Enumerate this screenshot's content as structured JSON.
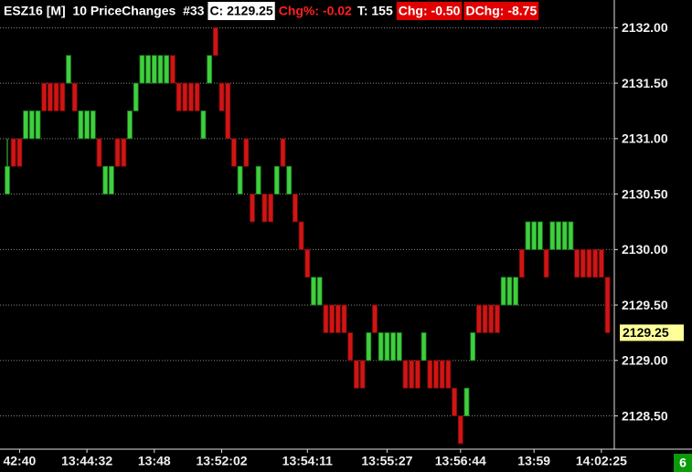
{
  "chart_data": {
    "type": "candlestick",
    "header": [
      "ESZ16 [M]  10 PriceChanges  #33",
      "C: 2129.25",
      "Chg%: -0.02",
      "T: 155",
      "Chg: -0.50",
      "DChg: -8.75"
    ],
    "categories": [
      null,
      null,
      "42:40",
      null,
      null,
      null,
      null,
      null,
      null,
      null,
      null,
      null,
      null,
      "13:44:32",
      null,
      null,
      null,
      null,
      null,
      null,
      null,
      null,
      null,
      null,
      "13:48",
      null,
      null,
      null,
      null,
      null,
      null,
      null,
      null,
      null,
      null,
      "13:52:02",
      null,
      null,
      null,
      null,
      null,
      null,
      null,
      null,
      null,
      null,
      null,
      null,
      null,
      "13:54:11",
      null,
      null,
      null,
      null,
      null,
      null,
      null,
      null,
      null,
      null,
      null,
      null,
      "13:55:27",
      null,
      null,
      null,
      null,
      null,
      null,
      null,
      null,
      null,
      null,
      null,
      "13:56:44",
      null,
      null,
      null,
      null,
      null,
      null,
      null,
      null,
      null,
      null,
      null,
      "13:59",
      null,
      null,
      null,
      null,
      null,
      null,
      null,
      null,
      null,
      null,
      "14:02:25",
      null
    ],
    "open": [
      2130.5,
      2131,
      2131,
      2131,
      2131,
      2131,
      2131.5,
      2131.5,
      2131.5,
      2131.5,
      2131.5,
      2131.5,
      2131,
      2131,
      2131,
      2131,
      2130.5,
      2130.5,
      2131,
      2131,
      2131,
      2131.25,
      2131.5,
      2131.5,
      2131.5,
      2131.5,
      2131.5,
      2131.75,
      2131.5,
      2131.5,
      2131.5,
      2131.5,
      2131,
      2131.5,
      2132,
      2131.5,
      2131.5,
      2131,
      2130.5,
      2131,
      2130.5,
      2130.5,
      2130.5,
      2130.5,
      2130.5,
      2131,
      2130.5,
      2130.5,
      2130.25,
      2130,
      2129.5,
      2129.5,
      2129.5,
      2129.5,
      2129.5,
      2129.5,
      2129.25,
      2129,
      2129,
      2129,
      2129.5,
      2129,
      2129,
      2129,
      2129,
      2129,
      2129,
      2129,
      2129,
      2129,
      2129,
      2129,
      2129,
      2128.75,
      2128.5,
      2128.5,
      2129,
      2129.5,
      2129.5,
      2129.5,
      2129.5,
      2129.5,
      2129.5,
      2129.5,
      2130,
      2130,
      2130,
      2130,
      2130,
      2130,
      2130,
      2130,
      2130,
      2130,
      2130,
      2130,
      2130,
      2130,
      2129.75
    ],
    "high": [
      2131,
      2131,
      2131,
      2131.25,
      2131.25,
      2131.25,
      2131.5,
      2131.5,
      2131.5,
      2131.5,
      2131.75,
      2131.5,
      2131.25,
      2131.25,
      2131.25,
      2131,
      2130.75,
      2130.75,
      2131,
      2131,
      2131.25,
      2131.5,
      2131.75,
      2131.75,
      2131.75,
      2131.75,
      2131.75,
      2131.75,
      2131.5,
      2131.5,
      2131.5,
      2131.5,
      2131.25,
      2131.75,
      2132,
      2131.5,
      2131.5,
      2131,
      2130.75,
      2131,
      2130.5,
      2130.75,
      2130.5,
      2130.5,
      2130.75,
      2131,
      2130.75,
      2130.5,
      2130.25,
      2130,
      2129.75,
      2129.75,
      2129.5,
      2129.5,
      2129.5,
      2129.5,
      2129.25,
      2129,
      2129,
      2129.25,
      2129.5,
      2129.25,
      2129.25,
      2129.25,
      2129.25,
      2129,
      2129,
      2129,
      2129.25,
      2129,
      2129,
      2129,
      2129,
      2128.75,
      2128.5,
      2128.75,
      2129.25,
      2129.5,
      2129.5,
      2129.5,
      2129.5,
      2129.75,
      2129.75,
      2129.75,
      2130,
      2130.25,
      2130.25,
      2130.25,
      2130,
      2130.25,
      2130.25,
      2130.25,
      2130.25,
      2130,
      2130,
      2130,
      2130,
      2130,
      2129.75
    ],
    "low": [
      2130.5,
      2130.75,
      2130.75,
      2131,
      2131,
      2131,
      2131.25,
      2131.25,
      2131.25,
      2131.25,
      2131.5,
      2131.25,
      2131,
      2131,
      2131,
      2130.75,
      2130.5,
      2130.5,
      2130.75,
      2130.75,
      2131,
      2131.25,
      2131.5,
      2131.5,
      2131.5,
      2131.5,
      2131.5,
      2131.5,
      2131.25,
      2131.25,
      2131.25,
      2131.25,
      2131,
      2131.5,
      2131.75,
      2131.25,
      2131,
      2130.75,
      2130.5,
      2130.75,
      2130.25,
      2130.5,
      2130.25,
      2130.25,
      2130.5,
      2130.75,
      2130.5,
      2130.25,
      2130,
      2129.75,
      2129.5,
      2129.5,
      2129.25,
      2129.25,
      2129.25,
      2129.25,
      2129,
      2128.75,
      2128.75,
      2129,
      2129.25,
      2129,
      2129,
      2129,
      2129,
      2128.75,
      2128.75,
      2128.75,
      2129,
      2128.75,
      2128.75,
      2128.75,
      2128.75,
      2128.5,
      2128.25,
      2128.5,
      2129,
      2129.25,
      2129.25,
      2129.25,
      2129.25,
      2129.5,
      2129.5,
      2129.5,
      2129.75,
      2130,
      2130,
      2130,
      2129.75,
      2130,
      2130,
      2130,
      2130,
      2129.75,
      2129.75,
      2129.75,
      2129.75,
      2129.75,
      2129.25
    ],
    "close": [
      2130.75,
      2130.75,
      2130.75,
      2131.25,
      2131.25,
      2131.25,
      2131.25,
      2131.25,
      2131.25,
      2131.25,
      2131.75,
      2131.25,
      2131.25,
      2131.25,
      2131.25,
      2130.75,
      2130.75,
      2130.75,
      2130.75,
      2130.75,
      2131.25,
      2131.5,
      2131.75,
      2131.75,
      2131.75,
      2131.75,
      2131.75,
      2131.5,
      2131.25,
      2131.25,
      2131.25,
      2131.25,
      2131.25,
      2131.75,
      2131.75,
      2131.25,
      2131,
      2130.75,
      2130.75,
      2130.75,
      2130.25,
      2130.75,
      2130.25,
      2130.25,
      2130.75,
      2130.75,
      2130.75,
      2130.25,
      2130,
      2129.75,
      2129.75,
      2129.75,
      2129.25,
      2129.25,
      2129.25,
      2129.25,
      2129,
      2128.75,
      2128.75,
      2129.25,
      2129.25,
      2129.25,
      2129.25,
      2129.25,
      2129.25,
      2128.75,
      2128.75,
      2128.75,
      2129.25,
      2128.75,
      2128.75,
      2128.75,
      2128.75,
      2128.5,
      2128.25,
      2128.75,
      2129.25,
      2129.25,
      2129.25,
      2129.25,
      2129.25,
      2129.75,
      2129.75,
      2129.75,
      2129.75,
      2130.25,
      2130.25,
      2130.25,
      2129.75,
      2130.25,
      2130.25,
      2130.25,
      2130.25,
      2129.75,
      2129.75,
      2129.75,
      2129.75,
      2129.75,
      2129.25
    ],
    "up_color": "#3fcf3f",
    "down_color": "#d01515",
    "last_price": 2129.25,
    "ylim": [
      2128.2,
      2132.25
    ],
    "yticks": [
      {
        "value": 2128.5,
        "label": "2128.50"
      },
      {
        "value": 2129,
        "label": "2129.00"
      },
      {
        "value": 2129.5,
        "label": "2129.50"
      },
      {
        "value": 2130,
        "label": "2130.00"
      },
      {
        "value": 2130.5,
        "label": "2130.50"
      },
      {
        "value": 2131,
        "label": "2131.00"
      },
      {
        "value": 2131.5,
        "label": "2131.50"
      },
      {
        "value": 2132,
        "label": "2132.00"
      }
    ],
    "grid": true,
    "badge": "6"
  }
}
